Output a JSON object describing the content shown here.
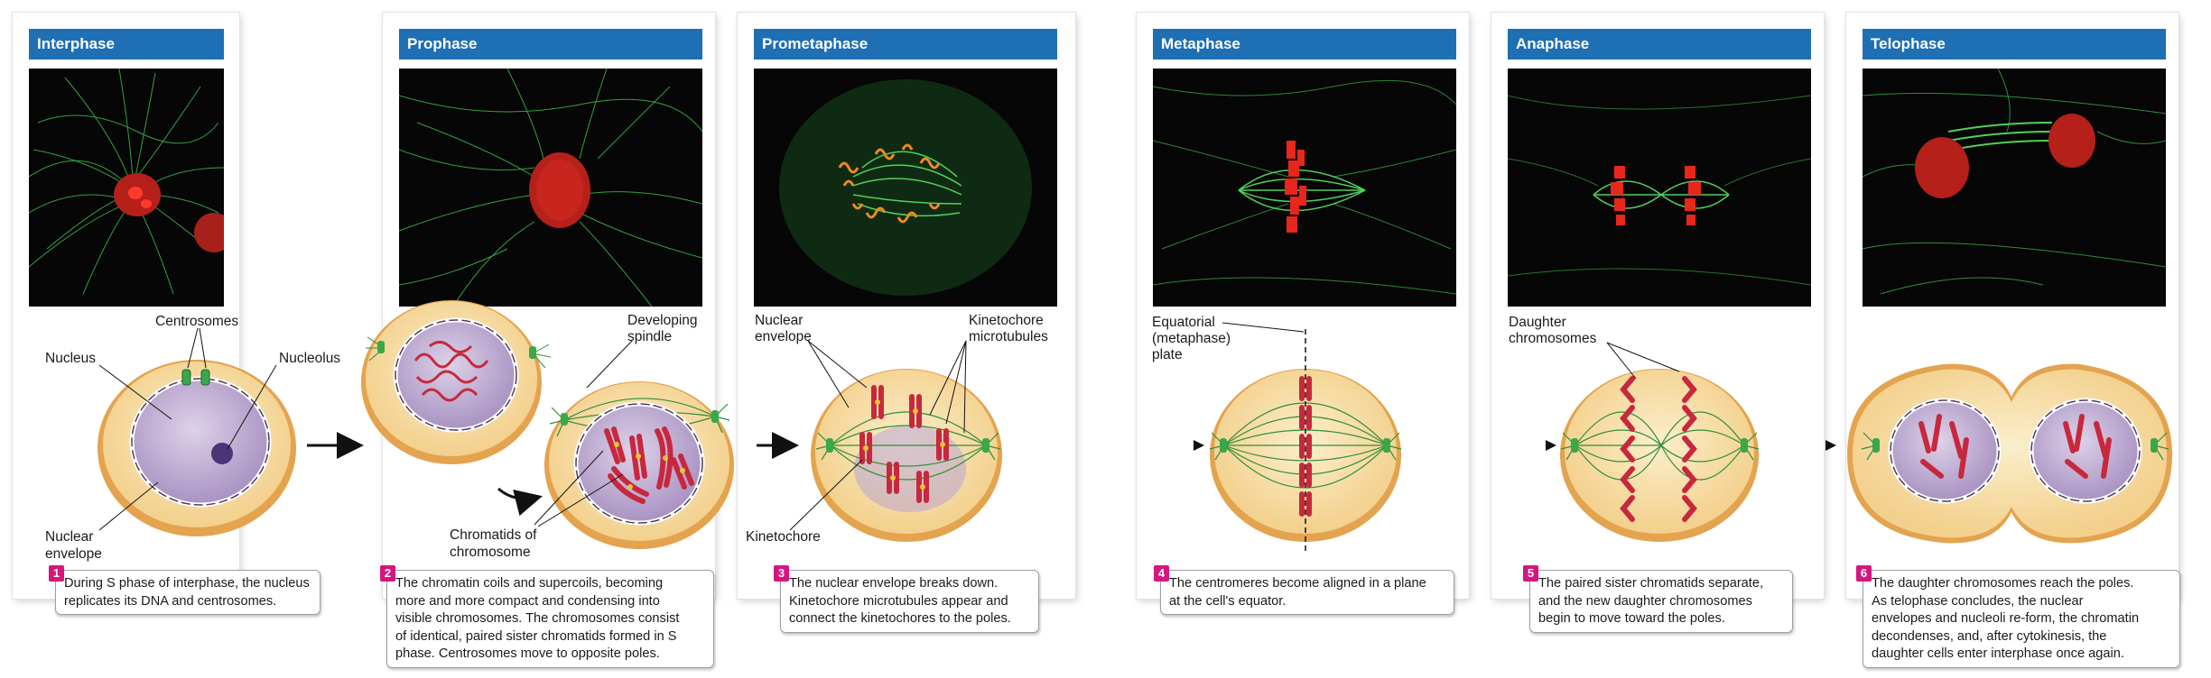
{
  "stages": [
    {
      "title": "Interphase",
      "step": "1",
      "caption": "During S phase of interphase, the nucleus\nreplicates its DNA and centrosomes."
    },
    {
      "title": "Prophase",
      "step": "2",
      "caption": "The chromatin coils and supercoils, becoming\nmore and more compact and condensing into\nvisible chromosomes. The chromosomes consist\nof identical, paired sister chromatids formed in S\nphase. Centrosomes move to opposite poles."
    },
    {
      "title": "Prometaphase",
      "step": "3",
      "caption": "The nuclear envelope breaks down.\nKinetochore microtubules appear and\nconnect the kinetochores to the poles."
    },
    {
      "title": "Metaphase",
      "step": "4",
      "caption": "The centromeres become aligned in a plane\nat the cell's equator."
    },
    {
      "title": "Anaphase",
      "step": "5",
      "caption": "The paired sister chromatids separate,\nand the new daughter chromosomes\nbegin to move toward the poles."
    },
    {
      "title": "Telophase",
      "step": "6",
      "caption": "The daughter chromosomes reach the poles.\nAs telophase concludes, the nuclear\nenvelopes and nucleoli re-form, the chromatin\ndecondenses, and, after cytokinesis, the\ndaughter cells enter interphase once again."
    }
  ],
  "labels": {
    "centrosomes": "Centrosomes",
    "nucleus": "Nucleus",
    "nucleolus": "Nucleolus",
    "nuclear_envelope_1a": "Nuclear",
    "nuclear_envelope_1b": "envelope",
    "developing_spindle_a": "Developing",
    "developing_spindle_b": "spindle",
    "chromatids_a": "Chromatids of",
    "chromatids_b": "chromosome",
    "nuclear_envelope_3a": "Nuclear",
    "nuclear_envelope_3b": "envelope",
    "kinetochore_mt_a": "Kinetochore",
    "kinetochore_mt_b": "microtubules",
    "kinetochore": "Kinetochore",
    "equatorial_a": "Equatorial",
    "equatorial_b": "(metaphase)",
    "equatorial_c": "plate",
    "daughter_a": "Daughter",
    "daughter_b": "chromosomes"
  },
  "colors": {
    "header": "#1f6fb5",
    "step_badge": "#d6157e",
    "cytoplasm": "#f6dea1",
    "cell_rim": "#e9b46a",
    "nucleus": "#c7b6d8",
    "chromosome": "#d0334a",
    "spindle": "#2f8f3a",
    "microtubule_fluor": "#3dbb4a",
    "dna_fluor": "#e0251c"
  }
}
